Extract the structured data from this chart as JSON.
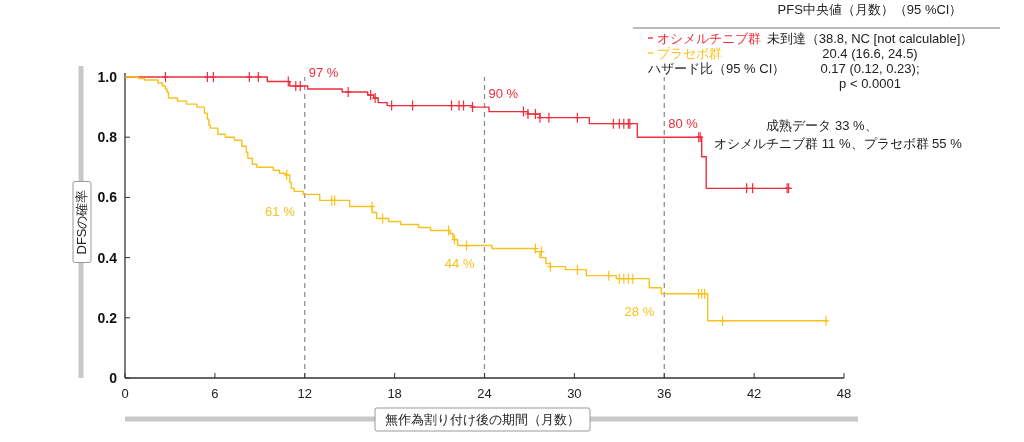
{
  "chart_data": {
    "type": "step",
    "xlabel": "無作為割り付け後の期間（月数）",
    "ylabel": "DFSの確率",
    "legend_title": "PFS中央値（月数）（95 %CI）",
    "legend": "top right",
    "xlim": [
      0,
      48
    ],
    "ylim": [
      0,
      1
    ],
    "xticks": [
      0,
      6,
      12,
      18,
      24,
      30,
      36,
      42,
      48
    ],
    "yticks": [
      0,
      0.2,
      0.4,
      0.6,
      0.8,
      {
        "value": 1,
        "label": "1.0"
      }
    ],
    "grid": false,
    "line_style": "solid",
    "ref_lines": [
      {
        "axis": "x",
        "value": 12,
        "color": "#888888",
        "line_style": "dashed"
      },
      {
        "axis": "x",
        "value": 24,
        "color": "#888888",
        "line_style": "dashed"
      },
      {
        "axis": "x",
        "value": 36,
        "color": "#888888",
        "line_style": "dashed"
      }
    ],
    "annotations": [
      "未到達（38.8, NC [not calculable]）",
      "20.4 (16.6, 24.5)",
      "ハザード比（95 % CI）",
      "0.17 (0.12, 0.23);",
      "p < 0.0001",
      "成熟データ 33 %、",
      "オシメルチニブ群 11 %、プラセボ群 55 %"
    ],
    "series": [
      {
        "name": "オシメルチニブ群",
        "type": "step",
        "color": "#ee2d3a",
        "x": [
          0,
          9.5,
          11.0,
          12,
          12.2,
          14.5,
          16.2,
          16.6,
          16.9,
          17.5,
          23.2,
          24,
          24.3,
          26.9,
          27.7,
          31.0,
          34.2,
          36,
          38.5,
          38.8,
          44.5
        ],
        "values": [
          1.0,
          0.985,
          0.97,
          0.97,
          0.96,
          0.95,
          0.94,
          0.93,
          0.915,
          0.905,
          0.9,
          0.9,
          0.885,
          0.877,
          0.865,
          0.845,
          0.8,
          0.8,
          0.735,
          0.63,
          0.63
        ],
        "value_labels": [
          null,
          null,
          null,
          "97 %",
          null,
          null,
          null,
          null,
          null,
          null,
          null,
          "90 %",
          null,
          null,
          null,
          null,
          null,
          "80 %",
          null,
          null,
          null
        ]
      },
      {
        "name": "プラセボ群",
        "type": "step",
        "color": "#f7c21d",
        "x": [
          0,
          0.9,
          1.3,
          2.2,
          2.5,
          2.7,
          2.8,
          2.9,
          3.5,
          4.1,
          4.8,
          5.3,
          5.5,
          5.6,
          5.7,
          6.2,
          6.7,
          7.3,
          7.8,
          8.1,
          8.2,
          8.5,
          8.8,
          9.9,
          10.3,
          10.7,
          11.0,
          11.1,
          11.3,
          11.9,
          12,
          13.0,
          15.0,
          16.5,
          16.8,
          17.6,
          18.4,
          19.6,
          20.4,
          21.7,
          21.9,
          22.2,
          24,
          24.5,
          27.4,
          27.7,
          28.1,
          28.4,
          29.4,
          30.8,
          32.8,
          35.0,
          35.8,
          36,
          38.9,
          46.9
        ],
        "values": [
          1.0,
          0.995,
          0.99,
          0.98,
          0.97,
          0.96,
          0.95,
          0.93,
          0.92,
          0.91,
          0.9,
          0.88,
          0.86,
          0.84,
          0.83,
          0.81,
          0.8,
          0.79,
          0.77,
          0.75,
          0.73,
          0.71,
          0.7,
          0.69,
          0.68,
          0.675,
          0.65,
          0.63,
          0.62,
          0.61,
          0.61,
          0.59,
          0.57,
          0.55,
          0.53,
          0.52,
          0.51,
          0.5,
          0.49,
          0.48,
          0.46,
          0.44,
          0.44,
          0.43,
          0.42,
          0.4,
          0.38,
          0.37,
          0.36,
          0.34,
          0.33,
          0.3,
          0.28,
          0.28,
          0.19,
          0.19
        ],
        "value_labels": [
          null,
          null,
          null,
          null,
          null,
          null,
          null,
          null,
          null,
          null,
          null,
          null,
          null,
          null,
          null,
          null,
          null,
          null,
          null,
          null,
          null,
          null,
          null,
          null,
          null,
          null,
          null,
          null,
          null,
          null,
          "61 %",
          null,
          null,
          null,
          null,
          null,
          null,
          null,
          null,
          null,
          null,
          null,
          "44 %",
          null,
          null,
          null,
          null,
          null,
          null,
          null,
          null,
          null,
          null,
          "28 %",
          null,
          null
        ]
      },
      {
        "type": "scatter",
        "marker": "cross",
        "color": "#ee2d3a",
        "x": [
          2.7,
          5.5,
          5.9,
          8.3,
          8.9,
          10.9,
          11.4,
          11.7,
          14.9,
          16.4,
          16.7,
          17.8,
          19.2,
          21.8,
          22.3,
          22.6,
          23.2,
          26.6,
          26.9,
          27.4,
          27.7,
          28.3,
          30.2,
          32.6,
          33.0,
          33.3,
          33.6,
          33.7,
          38.3,
          38.4,
          41.5,
          41.9,
          44.2,
          44.3
        ],
        "values": [
          1.0,
          1.0,
          1.0,
          1.0,
          1.0,
          0.985,
          0.97,
          0.97,
          0.95,
          0.94,
          0.93,
          0.905,
          0.905,
          0.905,
          0.905,
          0.905,
          0.9,
          0.885,
          0.877,
          0.877,
          0.865,
          0.865,
          0.865,
          0.845,
          0.845,
          0.845,
          0.845,
          0.845,
          0.8,
          0.8,
          0.63,
          0.63,
          0.63,
          0.63
        ]
      },
      {
        "type": "scatter",
        "marker": "cross",
        "color": "#f7c21d",
        "x": [
          10.8,
          13.8,
          14.0,
          16.5,
          17.2,
          21.6,
          22.0,
          22.8,
          27.4,
          27.8,
          28.4,
          30.2,
          32.3,
          33.0,
          33.3,
          33.6,
          33.9,
          38.3,
          38.5,
          38.7,
          39.9,
          46.8
        ],
        "values": [
          0.675,
          0.59,
          0.59,
          0.57,
          0.53,
          0.49,
          0.46,
          0.44,
          0.43,
          0.42,
          0.37,
          0.36,
          0.34,
          0.33,
          0.33,
          0.33,
          0.33,
          0.28,
          0.28,
          0.28,
          0.19,
          0.19
        ]
      }
    ]
  }
}
